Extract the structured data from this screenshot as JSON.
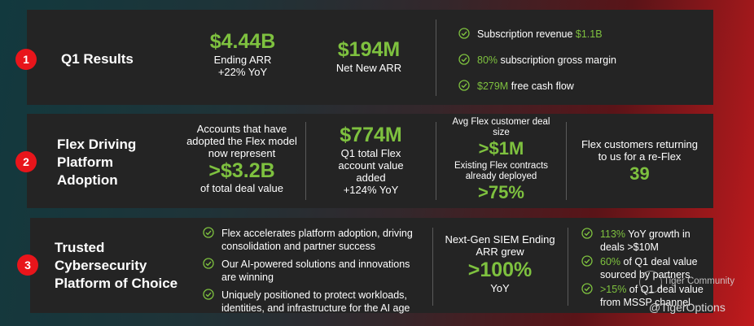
{
  "colors": {
    "accent_green": "#7ec13f",
    "badge_red": "#e8151b",
    "panel": "#242424"
  },
  "row1": {
    "number": "1",
    "title": "Q1 Results",
    "arr_value": "$4.44B",
    "arr_label": "Ending ARR",
    "arr_growth": "+22% YoY",
    "net_value": "$194M",
    "net_label": "Net New ARR",
    "bullets": [
      {
        "text": "Subscription revenue ",
        "highlight": "$1.1B"
      },
      {
        "highlight": "80%",
        "text": " subscription gross margin"
      },
      {
        "highlight": "$279M",
        "text": " free cash flow"
      }
    ]
  },
  "row2": {
    "number": "2",
    "title_lines": [
      "Flex Driving",
      "Platform",
      "Adoption"
    ],
    "accounts_lines": [
      "Accounts that have",
      "adopted the Flex model",
      "now represent"
    ],
    "accounts_value": ">$3.2B",
    "accounts_suffix": "of total deal value",
    "tcv_value": "$774M",
    "tcv_lines": [
      "Q1 total Flex",
      "account value",
      "added"
    ],
    "tcv_growth": "+124% YoY",
    "deal_lines": [
      "Avg Flex customer deal",
      "size"
    ],
    "deal_value": ">$1M",
    "deployed_lines": [
      "Existing Flex contracts",
      "already deployed"
    ],
    "deployed_value": ">75%",
    "reflex_lines": [
      "Flex customers returning",
      "to us for a re-Flex"
    ],
    "reflex_value": "39"
  },
  "row3": {
    "number": "3",
    "title_lines": [
      "Trusted",
      "Cybersecurity",
      "Platform of Choice"
    ],
    "bullets": [
      [
        "Flex accelerates platform adoption, driving",
        "consolidation and partner success"
      ],
      [
        "Our AI-powered solutions and innovations",
        "are winning"
      ],
      [
        "Uniquely positioned to protect workloads,",
        "identities, and infrastructure for the AI age"
      ]
    ],
    "siem_lines": [
      "Next-Gen SIEM Ending",
      "ARR grew"
    ],
    "siem_value": ">100%",
    "siem_suffix": "YoY",
    "right_bullets": [
      {
        "highlight": "113%",
        "lines": [
          " YoY growth in",
          "deals >$10M"
        ]
      },
      {
        "highlight": "60%",
        "lines": [
          " of Q1 deal value",
          "sourced by partners"
        ]
      },
      {
        "highlight": ">15%",
        "lines": [
          " of Q1 deal value",
          "from MSSP channel"
        ]
      }
    ]
  },
  "watermark": {
    "community": "Tiger Community",
    "handle": "@TigerOptions"
  }
}
